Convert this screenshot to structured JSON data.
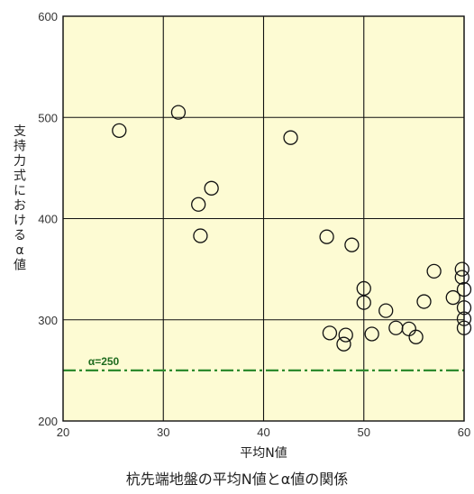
{
  "chart_data": {
    "type": "scatter",
    "title": "杭先端地盤の平均N値とα値の関係",
    "xlabel": "平均N値",
    "ylabel": "支持力式におけるα値",
    "xlim": [
      20,
      60
    ],
    "ylim": [
      200,
      600
    ],
    "xticks": [
      20,
      30,
      40,
      50,
      60
    ],
    "yticks": [
      200,
      300,
      400,
      500,
      600
    ],
    "grid": true,
    "background_color": "#fdfbd3",
    "marker": "open-circle",
    "points": [
      {
        "x": 25.6,
        "y": 487
      },
      {
        "x": 31.5,
        "y": 505
      },
      {
        "x": 33.5,
        "y": 414
      },
      {
        "x": 33.7,
        "y": 383
      },
      {
        "x": 34.8,
        "y": 430
      },
      {
        "x": 42.7,
        "y": 480
      },
      {
        "x": 46.3,
        "y": 382
      },
      {
        "x": 46.6,
        "y": 287
      },
      {
        "x": 48.0,
        "y": 276
      },
      {
        "x": 48.2,
        "y": 285
      },
      {
        "x": 48.8,
        "y": 374
      },
      {
        "x": 50.0,
        "y": 331
      },
      {
        "x": 50.0,
        "y": 317
      },
      {
        "x": 50.8,
        "y": 286
      },
      {
        "x": 52.2,
        "y": 309
      },
      {
        "x": 53.2,
        "y": 292
      },
      {
        "x": 54.5,
        "y": 291
      },
      {
        "x": 55.2,
        "y": 283
      },
      {
        "x": 56.0,
        "y": 318
      },
      {
        "x": 57.0,
        "y": 348
      },
      {
        "x": 58.9,
        "y": 322
      },
      {
        "x": 59.8,
        "y": 350
      },
      {
        "x": 59.8,
        "y": 342
      },
      {
        "x": 60.0,
        "y": 330
      },
      {
        "x": 60.0,
        "y": 312
      },
      {
        "x": 60.0,
        "y": 301
      },
      {
        "x": 60.0,
        "y": 292
      }
    ],
    "reference_line": {
      "label": "α=250",
      "y": 250,
      "color": "#2e8b2e",
      "style": "dash-dot"
    }
  }
}
